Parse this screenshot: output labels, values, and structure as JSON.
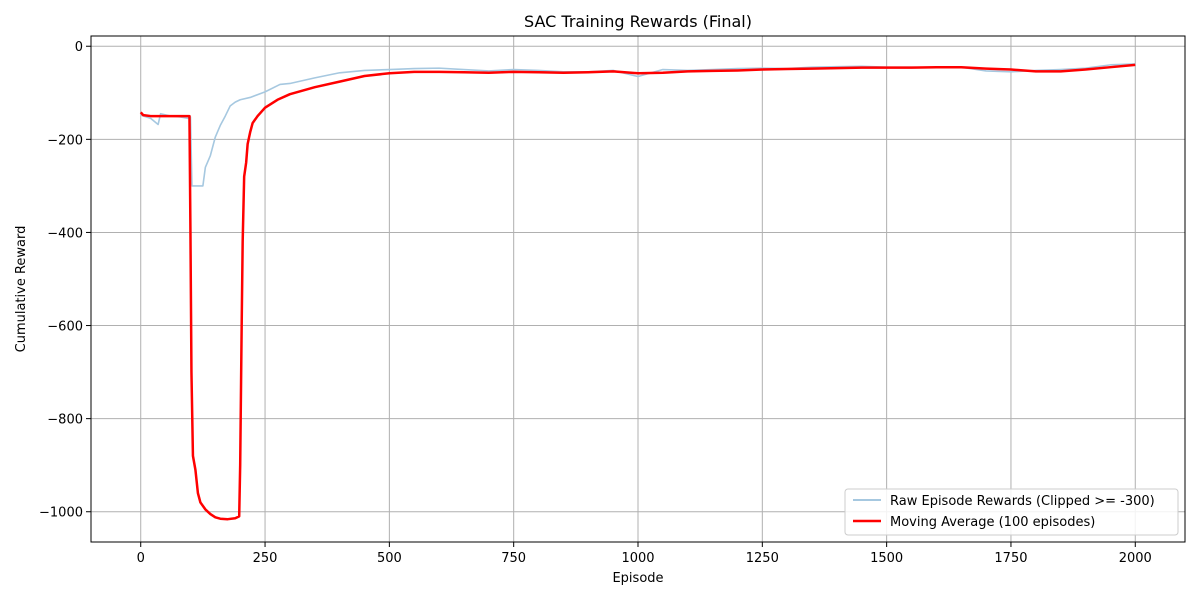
{
  "chart_data": {
    "type": "line",
    "title": "SAC Training Rewards (Final)",
    "xlabel": "Episode",
    "ylabel": "Cumulative Reward",
    "xlim": [
      -100,
      2100
    ],
    "ylim": [
      -1065,
      22
    ],
    "xticks": [
      0,
      250,
      500,
      750,
      1000,
      1250,
      1500,
      1750,
      2000
    ],
    "yticks": [
      0,
      -200,
      -400,
      -600,
      -800,
      -1000
    ],
    "grid": true,
    "legend_position": "lower-right",
    "series": [
      {
        "name": "Raw Episode Rewards (Clipped >= -300)",
        "color": "#a6c8e0",
        "x": [
          0,
          20,
          35,
          40,
          60,
          80,
          95,
          100,
          103,
          110,
          120,
          125,
          130,
          140,
          150,
          160,
          170,
          180,
          190,
          200,
          220,
          250,
          280,
          300,
          350,
          400,
          450,
          500,
          550,
          600,
          650,
          700,
          750,
          800,
          850,
          900,
          950,
          1000,
          1050,
          1100,
          1150,
          1200,
          1250,
          1300,
          1350,
          1400,
          1450,
          1500,
          1550,
          1600,
          1650,
          1700,
          1750,
          1800,
          1850,
          1900,
          1950,
          2000
        ],
        "y": [
          -148,
          -155,
          -168,
          -145,
          -150,
          -152,
          -155,
          -152,
          -300,
          -300,
          -300,
          -300,
          -260,
          -235,
          -195,
          -170,
          -150,
          -128,
          -120,
          -115,
          -110,
          -98,
          -82,
          -80,
          -68,
          -57,
          -52,
          -50,
          -48,
          -47,
          -50,
          -53,
          -50,
          -52,
          -55,
          -55,
          -52,
          -65,
          -50,
          -52,
          -50,
          -48,
          -47,
          -48,
          -45,
          -44,
          -43,
          -45,
          -45,
          -46,
          -45,
          -53,
          -55,
          -52,
          -50,
          -47,
          -40,
          -38
        ]
      },
      {
        "name": "Moving Average (100 episodes)",
        "color": "#ff0000",
        "x": [
          0,
          5,
          20,
          50,
          80,
          98,
          100,
          102,
          105,
          110,
          115,
          120,
          130,
          140,
          150,
          160,
          175,
          190,
          198,
          200,
          203,
          205,
          208,
          212,
          215,
          220,
          225,
          235,
          250,
          275,
          300,
          350,
          400,
          450,
          500,
          550,
          600,
          650,
          700,
          750,
          800,
          850,
          900,
          950,
          1000,
          1050,
          1100,
          1150,
          1200,
          1250,
          1300,
          1350,
          1400,
          1450,
          1500,
          1550,
          1600,
          1650,
          1700,
          1750,
          1800,
          1850,
          1900,
          1950,
          2000
        ],
        "y": [
          -142,
          -148,
          -150,
          -150,
          -150,
          -150,
          -400,
          -700,
          -880,
          -910,
          -960,
          -980,
          -995,
          -1005,
          -1012,
          -1015,
          -1016,
          -1014,
          -1010,
          -900,
          -600,
          -420,
          -280,
          -250,
          -210,
          -185,
          -165,
          -150,
          -132,
          -115,
          -103,
          -88,
          -76,
          -64,
          -58,
          -55,
          -55,
          -56,
          -57,
          -55,
          -56,
          -57,
          -56,
          -54,
          -58,
          -57,
          -54,
          -53,
          -52,
          -50,
          -49,
          -48,
          -47,
          -46,
          -46,
          -46,
          -45,
          -45,
          -48,
          -50,
          -54,
          -54,
          -50,
          -45,
          -40
        ]
      }
    ]
  }
}
